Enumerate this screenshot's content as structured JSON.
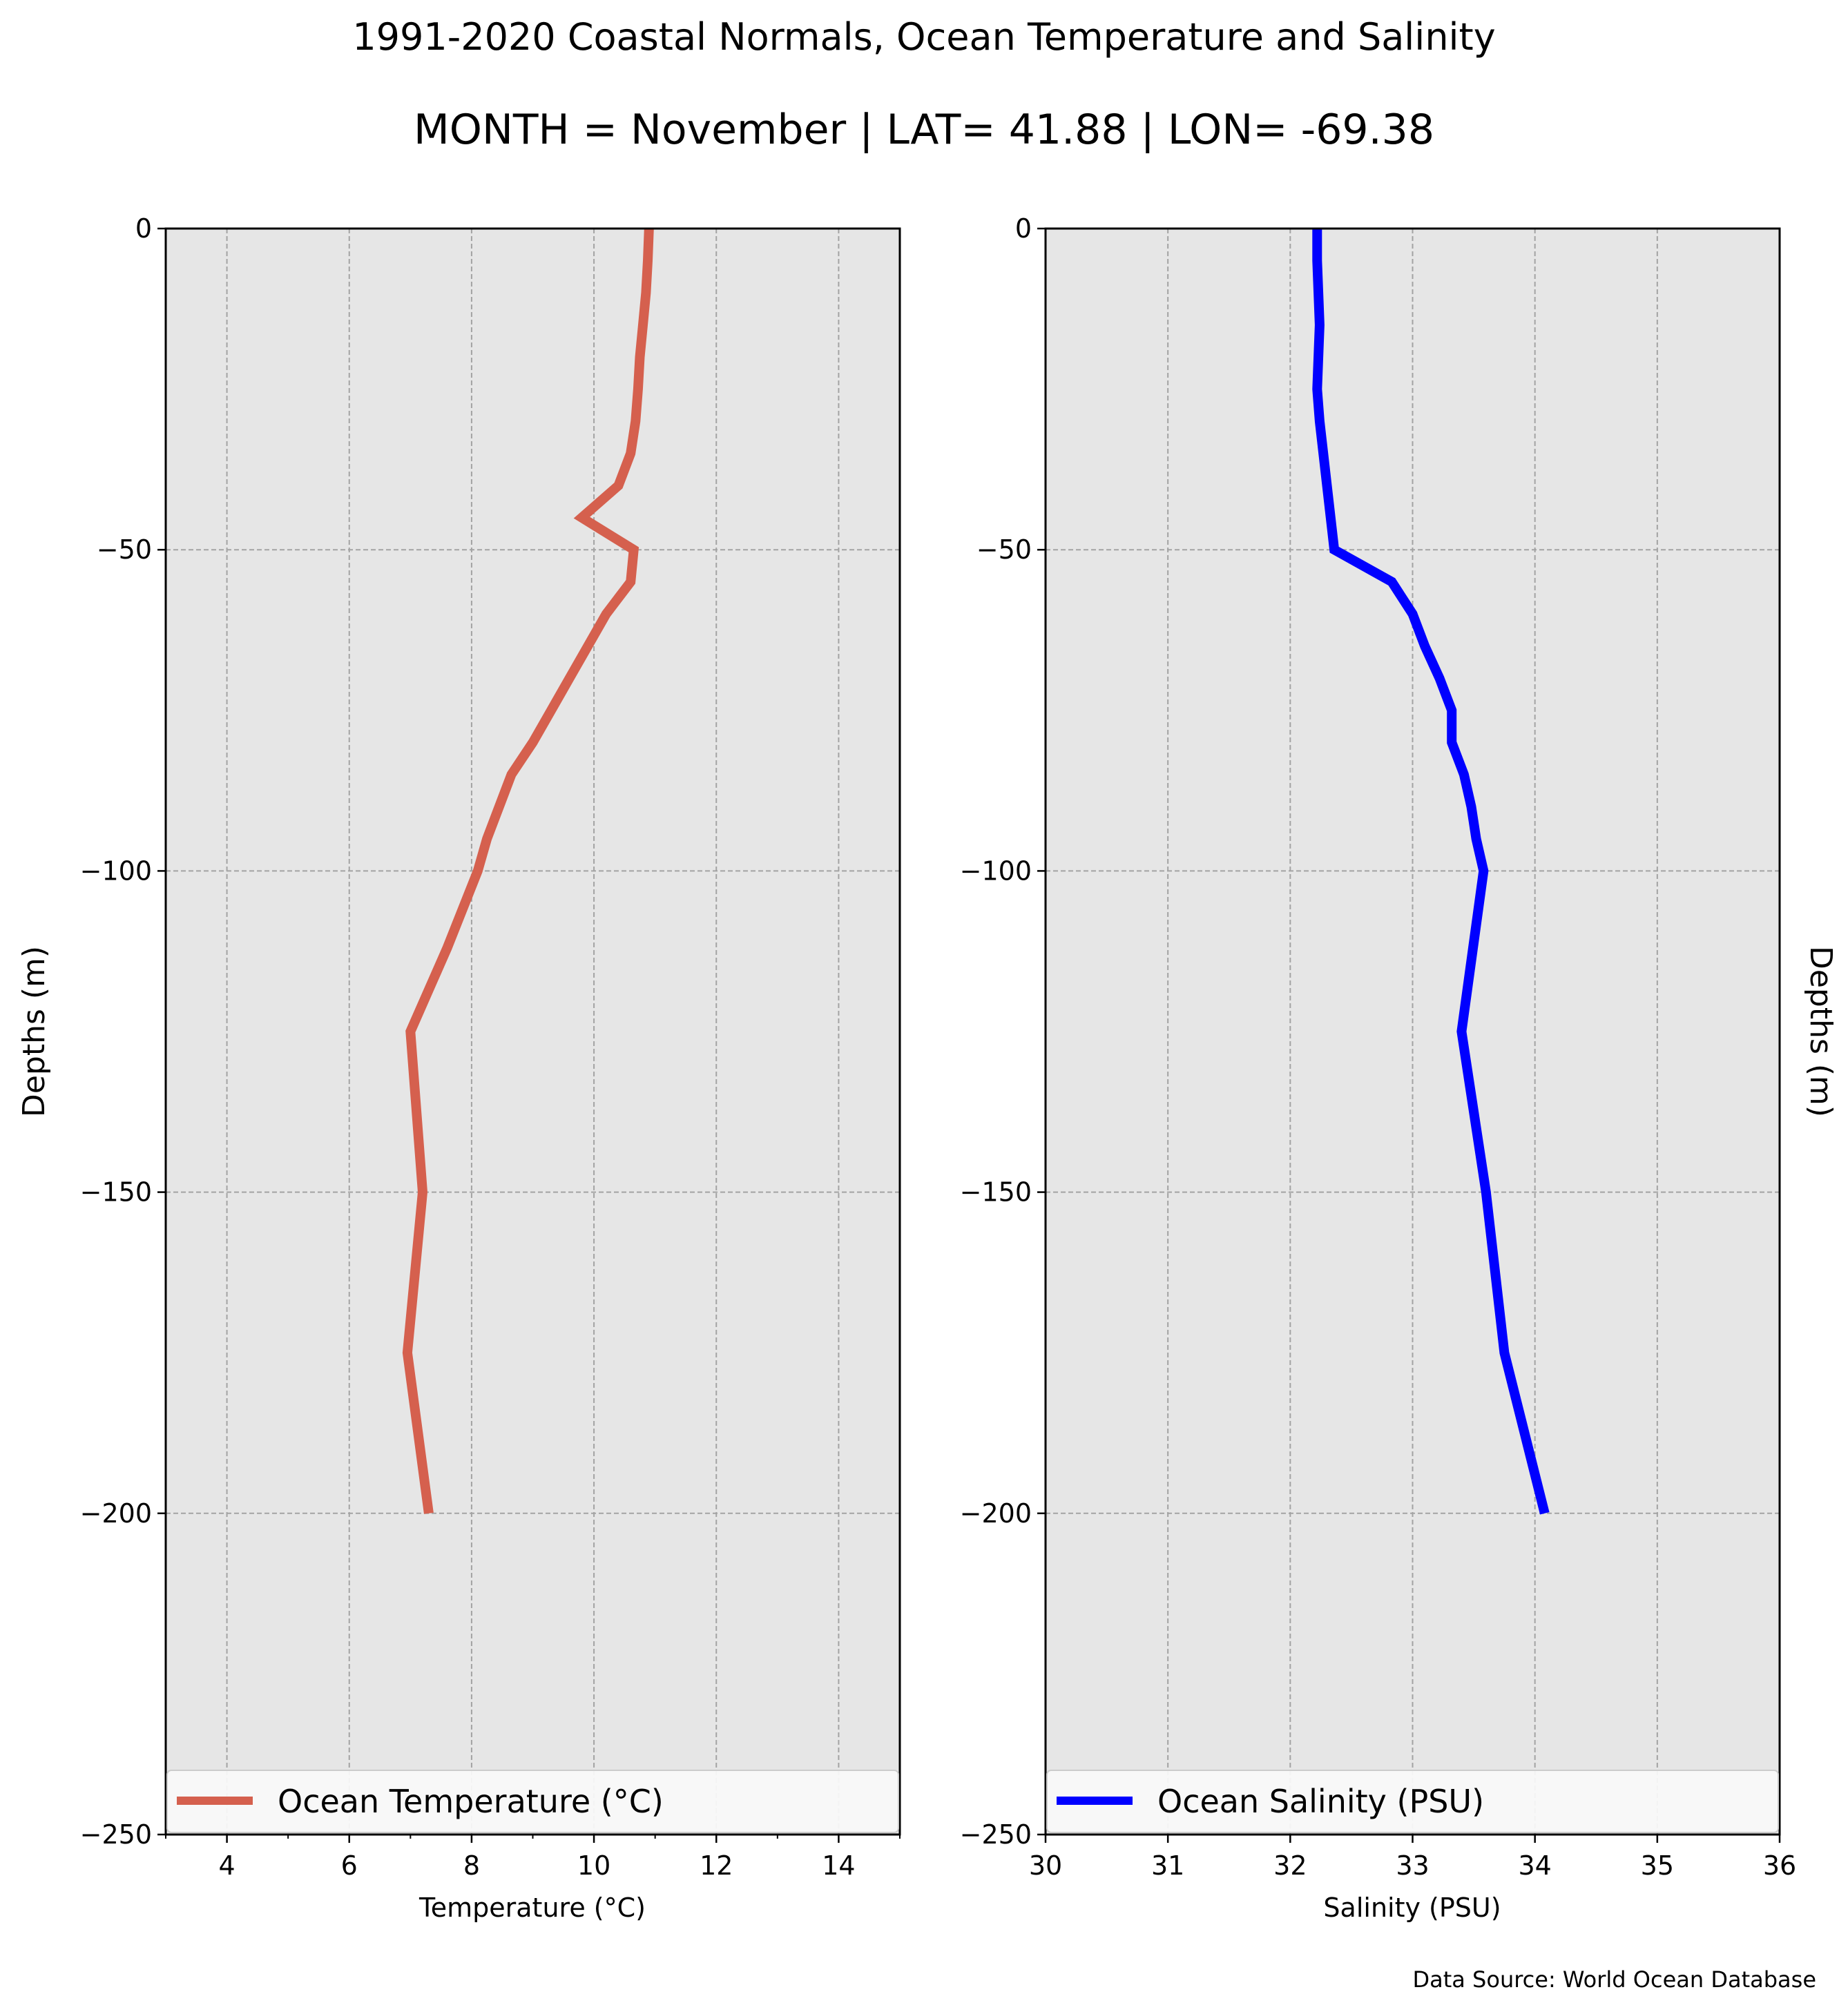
{
  "figure": {
    "title": "1991-2020 Coastal Normals, Ocean Temperature and Salinity",
    "subtitle": "MONTH = November | LAT= 41.88 | LON= -69.38",
    "source_note": "Data Source: World Ocean Database",
    "right_ylabel": "Depths (m)"
  },
  "chart_data": [
    {
      "type": "line",
      "xlabel": "Temperature ($^\\circ$C)",
      "ylabel": "Depths (m)",
      "xlim": [
        3,
        15
      ],
      "ylim": [
        -250,
        0
      ],
      "xticks": [
        4,
        6,
        8,
        10,
        12,
        14
      ],
      "xtick_labels": [
        "4",
        "6",
        "8",
        "10",
        "12",
        "14"
      ],
      "yticks": [
        0,
        -50,
        -100,
        -150,
        -200,
        -250
      ],
      "ytick_labels": [
        "0",
        "−50",
        "−100",
        "−150",
        "−200",
        "−250"
      ],
      "grid": true,
      "background": "#e6e6e6",
      "legend_position": "bottom",
      "series": [
        {
          "name": "Ocean Temperature ($^\\circ$C)",
          "color": "#d5604e",
          "x": [
            10.9,
            10.88,
            10.85,
            10.8,
            10.75,
            10.72,
            10.68,
            10.6,
            10.4,
            9.8,
            10.65,
            10.6,
            10.2,
            9.9,
            9.6,
            9.3,
            9.0,
            8.65,
            8.45,
            8.25,
            8.1,
            7.6,
            7.0,
            7.2,
            6.95,
            7.3
          ],
          "y": [
            0,
            -5,
            -10,
            -15,
            -20,
            -25,
            -30,
            -35,
            -40,
            -45,
            -50,
            -55,
            -60,
            -65,
            -70,
            -75,
            -80,
            -85,
            -90,
            -95,
            -100,
            -112,
            -125,
            -150,
            -175,
            -200
          ]
        }
      ]
    },
    {
      "type": "line",
      "xlabel": "Salinity (PSU)",
      "ylabel": "",
      "xlim": [
        30,
        36
      ],
      "ylim": [
        -250,
        0
      ],
      "xticks": [
        30,
        31,
        32,
        33,
        34,
        35,
        36
      ],
      "xtick_labels": [
        "30",
        "31",
        "32",
        "33",
        "34",
        "35",
        "36"
      ],
      "yticks": [
        0,
        -50,
        -100,
        -150,
        -200,
        -250
      ],
      "ytick_labels": [
        "0",
        "−50",
        "−100",
        "−150",
        "−200",
        "−250"
      ],
      "grid": true,
      "background": "#e6e6e6",
      "legend_position": "bottom",
      "series": [
        {
          "name": "Ocean Salinity (PSU)",
          "color": "#0000ff",
          "x": [
            32.22,
            32.22,
            32.23,
            32.24,
            32.23,
            32.22,
            32.24,
            32.27,
            32.3,
            32.33,
            32.36,
            32.83,
            33.0,
            33.1,
            33.22,
            33.32,
            33.32,
            33.42,
            33.48,
            33.52,
            33.58,
            33.4,
            33.6,
            33.75,
            34.08
          ],
          "y": [
            0,
            -5,
            -10,
            -15,
            -20,
            -25,
            -30,
            -35,
            -40,
            -45,
            -50,
            -55,
            -60,
            -65,
            -70,
            -75,
            -80,
            -85,
            -90,
            -95,
            -100,
            -125,
            -150,
            -175,
            -200
          ]
        }
      ]
    }
  ]
}
